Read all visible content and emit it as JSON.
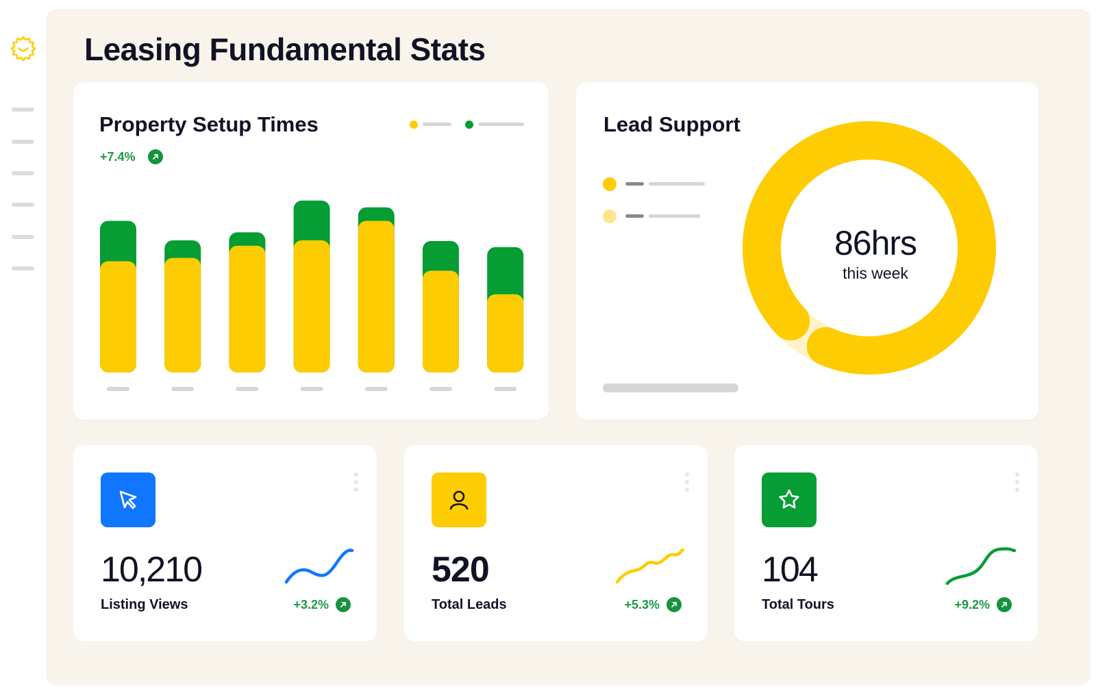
{
  "page": {
    "title": "Leasing Fundamental Stats"
  },
  "colors": {
    "yellow": "#fecc02",
    "pale_yellow": "#fef3c9",
    "green": "#069d34",
    "blue": "#0f76fd",
    "delta_green": "#1c9a46",
    "page_bg": "#f8f4ec"
  },
  "sidebar": {
    "logo_icon": "sun-smile-icon",
    "items": [
      "",
      "",
      "",
      "",
      "",
      ""
    ]
  },
  "setup_card": {
    "title": "Property Setup Times",
    "delta": "+7.4%",
    "delta_icon": "arrow-up-right-icon",
    "legend": [
      {
        "color": "#fecc02"
      },
      {
        "color": "#069d34"
      }
    ]
  },
  "chart_data": {
    "type": "bar",
    "stacked": true,
    "categories": [
      "",
      "",
      "",
      "",
      "",
      "",
      ""
    ],
    "series": [
      {
        "color": "#fecc02",
        "values": [
          165,
          170,
          188,
          196,
          225,
          151,
          116
        ]
      },
      {
        "color": "#069d34",
        "values": [
          60,
          26,
          20,
          59,
          20,
          44,
          70
        ]
      }
    ],
    "ylim": [
      0,
      260
    ],
    "grid": false,
    "legend": "top-right"
  },
  "lead_card": {
    "title": "Lead Support",
    "value": "86hrs",
    "value_label": "this week",
    "legend": [
      {
        "color": "#fecc02"
      },
      {
        "color": "#fee68f"
      }
    ],
    "donut": {
      "type": "pie",
      "slices": [
        {
          "color": "#fecc02",
          "value": 0.935
        },
        {
          "color": "#fef3c9",
          "value": 0.065
        }
      ]
    }
  },
  "stats": [
    {
      "icon": "cursor-arrow-icon",
      "icon_bg": "#0f76fd",
      "value": "10,210",
      "label": "Listing Views",
      "delta": "+3.2%",
      "spark_color": "#0f76fd"
    },
    {
      "icon": "user-icon",
      "icon_bg": "#fecc02",
      "value": "520",
      "label": "Total Leads",
      "delta": "+5.3%",
      "spark_color": "#fecc02"
    },
    {
      "icon": "star-icon",
      "icon_bg": "#069d34",
      "value": "104",
      "label": "Total Tours",
      "delta": "+9.2%",
      "spark_color": "#069d34"
    }
  ]
}
